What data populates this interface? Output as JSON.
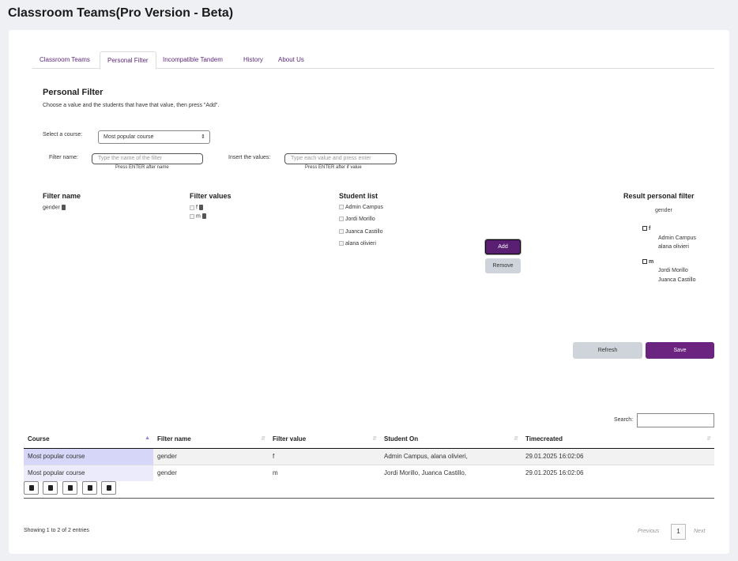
{
  "app": {
    "title": "Classroom Teams(Pro Version - Beta)"
  },
  "tabs": [
    {
      "label": "Classroom Teams"
    },
    {
      "label": "Personal Filter"
    },
    {
      "label": "Incompatible Tandem"
    },
    {
      "label": "History"
    },
    {
      "label": "About Us"
    }
  ],
  "personal_filter": {
    "title": "Personal Filter",
    "description": "Choose a value and the students that have that value, then press \"Add\".",
    "select_course_label": "Select a course:",
    "course_selected": "Most popular course",
    "filter_name_label": "Filter name:",
    "filter_name_placeholder": "Type the name of the filter",
    "filter_name_hint": "Press ENTER after name",
    "insert_values_label": "Insert the values:",
    "insert_values_placeholder": "Type each value and press enter",
    "insert_values_hint": "Press ENTER after if value"
  },
  "columns": {
    "filter_name_header": "Filter name",
    "filter_values_header": "Filter values",
    "student_list_header": "Student list",
    "result_header": "Result personal filter"
  },
  "filter_names": [
    "gender"
  ],
  "filter_values": [
    "f",
    "m"
  ],
  "students": [
    "Admin Campus",
    "Jordi Morillo",
    "Juanca Castillo",
    "alana olivieri"
  ],
  "buttons": {
    "add": "Add",
    "remove": "Remove",
    "refresh": "Refresh",
    "save": "Save"
  },
  "result": {
    "filter": "gender",
    "groups": [
      {
        "value": "f",
        "students": [
          "Admin Campus",
          "alana olivieri"
        ]
      },
      {
        "value": "m",
        "students": [
          "Jordi Morillo",
          "Juanca Castillo"
        ]
      }
    ]
  },
  "table": {
    "search_label": "Search:",
    "headers": [
      "Course",
      "Filter name",
      "Filter value",
      "Student On",
      "Timecreated"
    ],
    "rows": [
      [
        "Most popular course",
        "gender",
        "f",
        "Admin Campus, alana olivieri,",
        "29.01.2025 16:02:06"
      ],
      [
        "Most popular course",
        "gender",
        "m",
        "Jordi Morillo, Juanca Castillo,",
        "29.01.2025 16:02:06"
      ]
    ],
    "export_buttons": [
      "copy-icon",
      "csv-icon",
      "pdf-icon",
      "print-icon",
      "clipboard-icon"
    ],
    "info": "Showing 1 to 2 of 2 entries",
    "pager": {
      "previous": "Previous",
      "current": "1",
      "next": "Next"
    }
  }
}
